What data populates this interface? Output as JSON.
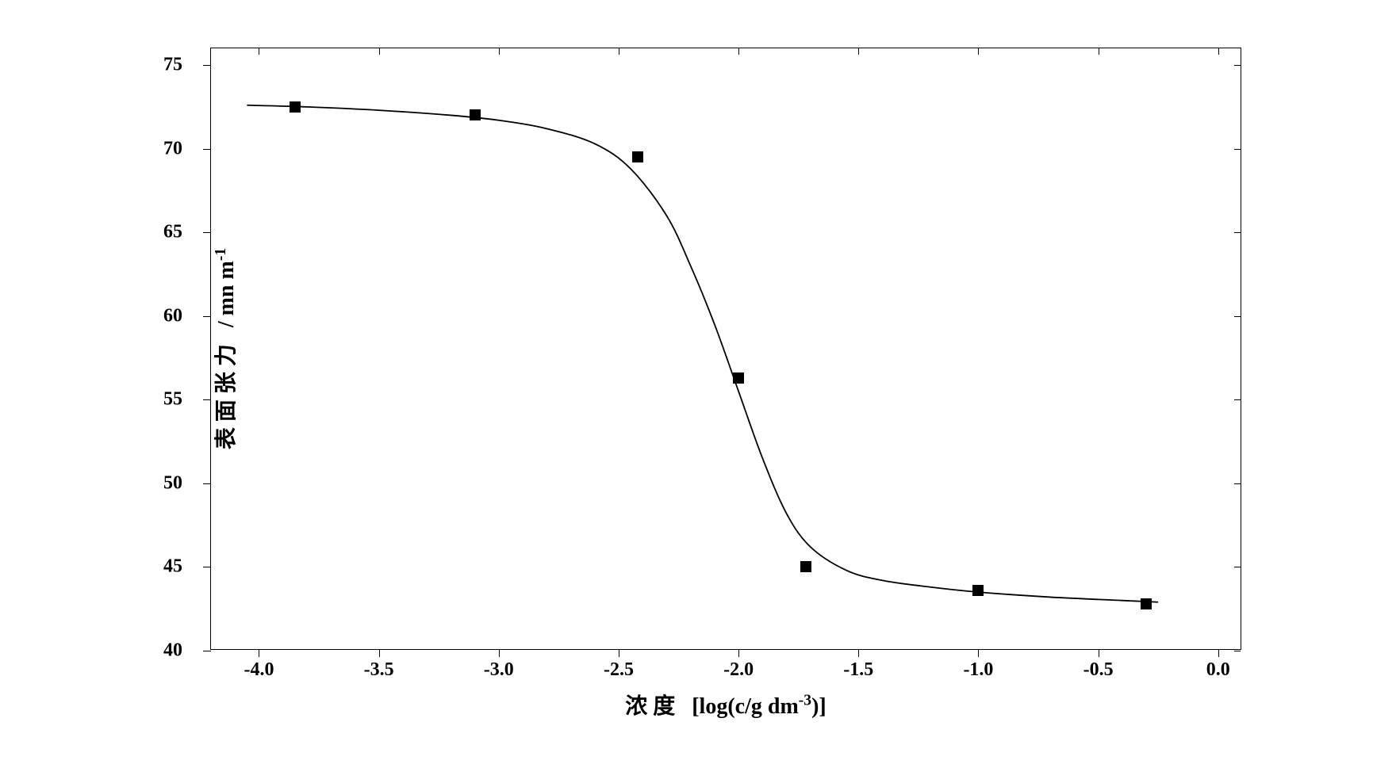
{
  "chart": {
    "type": "scatter-line",
    "background_color": "#ffffff",
    "border_color": "#000000",
    "x_axis": {
      "label": "浓 度   [log(c/g dm⁻³)]",
      "min": -4.2,
      "max": 0.1,
      "ticks": [
        -4.0,
        -3.5,
        -3.0,
        -2.5,
        -2.0,
        -1.5,
        -1.0,
        -0.5,
        0.0
      ],
      "tick_labels": [
        "-4.0",
        "-3.5",
        "-3.0",
        "-2.5",
        "-2.0",
        "-1.5",
        "-1.0",
        "-0.5",
        "0.0"
      ]
    },
    "y_axis": {
      "label": "表 面 张 力   / mn m⁻¹",
      "min": 40,
      "max": 76,
      "ticks": [
        40,
        45,
        50,
        55,
        60,
        65,
        70,
        75
      ],
      "tick_labels": [
        "40",
        "45",
        "50",
        "55",
        "60",
        "65",
        "70",
        "75"
      ]
    },
    "data_points": [
      {
        "x": -3.85,
        "y": 72.5
      },
      {
        "x": -3.1,
        "y": 72.0
      },
      {
        "x": -2.42,
        "y": 69.5
      },
      {
        "x": -2.0,
        "y": 56.3
      },
      {
        "x": -1.72,
        "y": 45.0
      },
      {
        "x": -1.0,
        "y": 43.6
      },
      {
        "x": -0.3,
        "y": 42.8
      }
    ],
    "curve_points": [
      {
        "x": -4.05,
        "y": 72.6
      },
      {
        "x": -3.8,
        "y": 72.5
      },
      {
        "x": -3.5,
        "y": 72.3
      },
      {
        "x": -3.2,
        "y": 72.0
      },
      {
        "x": -3.0,
        "y": 71.7
      },
      {
        "x": -2.8,
        "y": 71.2
      },
      {
        "x": -2.6,
        "y": 70.3
      },
      {
        "x": -2.45,
        "y": 68.8
      },
      {
        "x": -2.3,
        "y": 66.0
      },
      {
        "x": -2.2,
        "y": 63.0
      },
      {
        "x": -2.1,
        "y": 59.5
      },
      {
        "x": -2.0,
        "y": 55.5
      },
      {
        "x": -1.9,
        "y": 51.5
      },
      {
        "x": -1.8,
        "y": 48.2
      },
      {
        "x": -1.7,
        "y": 46.2
      },
      {
        "x": -1.55,
        "y": 44.8
      },
      {
        "x": -1.4,
        "y": 44.2
      },
      {
        "x": -1.2,
        "y": 43.8
      },
      {
        "x": -1.0,
        "y": 43.5
      },
      {
        "x": -0.7,
        "y": 43.2
      },
      {
        "x": -0.4,
        "y": 43.0
      },
      {
        "x": -0.25,
        "y": 42.9
      }
    ],
    "marker_color": "#000000",
    "marker_size": 14,
    "line_color": "#000000",
    "line_width": 1.8,
    "label_fontsize": 28,
    "tick_fontsize": 24
  }
}
